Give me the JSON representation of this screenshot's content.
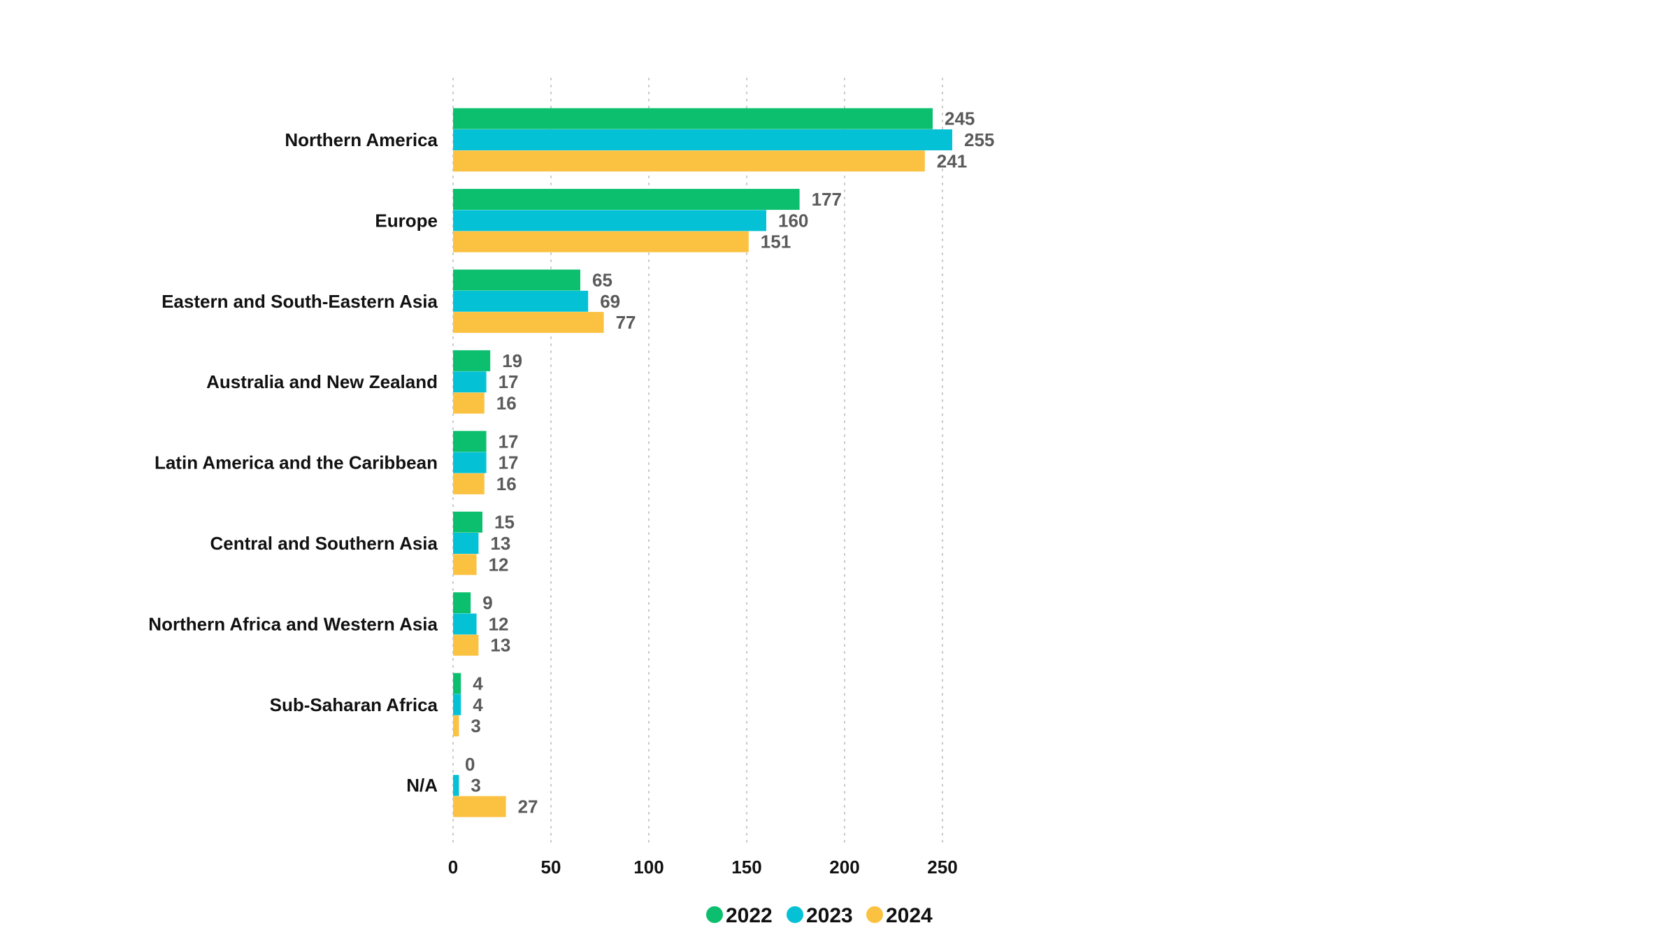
{
  "chart_data": {
    "type": "bar",
    "orientation": "horizontal",
    "title": "",
    "xlabel": "",
    "ylabel": "",
    "xlim": [
      0,
      250
    ],
    "xticks": [
      0,
      50,
      100,
      150,
      200,
      250
    ],
    "grid": true,
    "legend_position": "bottom-center",
    "categories": [
      "Northern America",
      "Europe",
      "Eastern and South-Eastern Asia",
      "Australia and New Zealand",
      "Latin America and the Caribbean",
      "Central and Southern Asia",
      "Northern Africa and Western Asia",
      "Sub-Saharan Africa",
      "N/A"
    ],
    "series": [
      {
        "name": "2022",
        "color": "#0bbf6e",
        "values": [
          245,
          177,
          65,
          19,
          17,
          15,
          9,
          4,
          0
        ]
      },
      {
        "name": "2023",
        "color": "#04c1d6",
        "values": [
          255,
          160,
          69,
          17,
          17,
          13,
          12,
          4,
          3
        ]
      },
      {
        "name": "2024",
        "color": "#fbc242",
        "values": [
          241,
          151,
          77,
          16,
          16,
          12,
          13,
          3,
          27
        ]
      }
    ]
  }
}
